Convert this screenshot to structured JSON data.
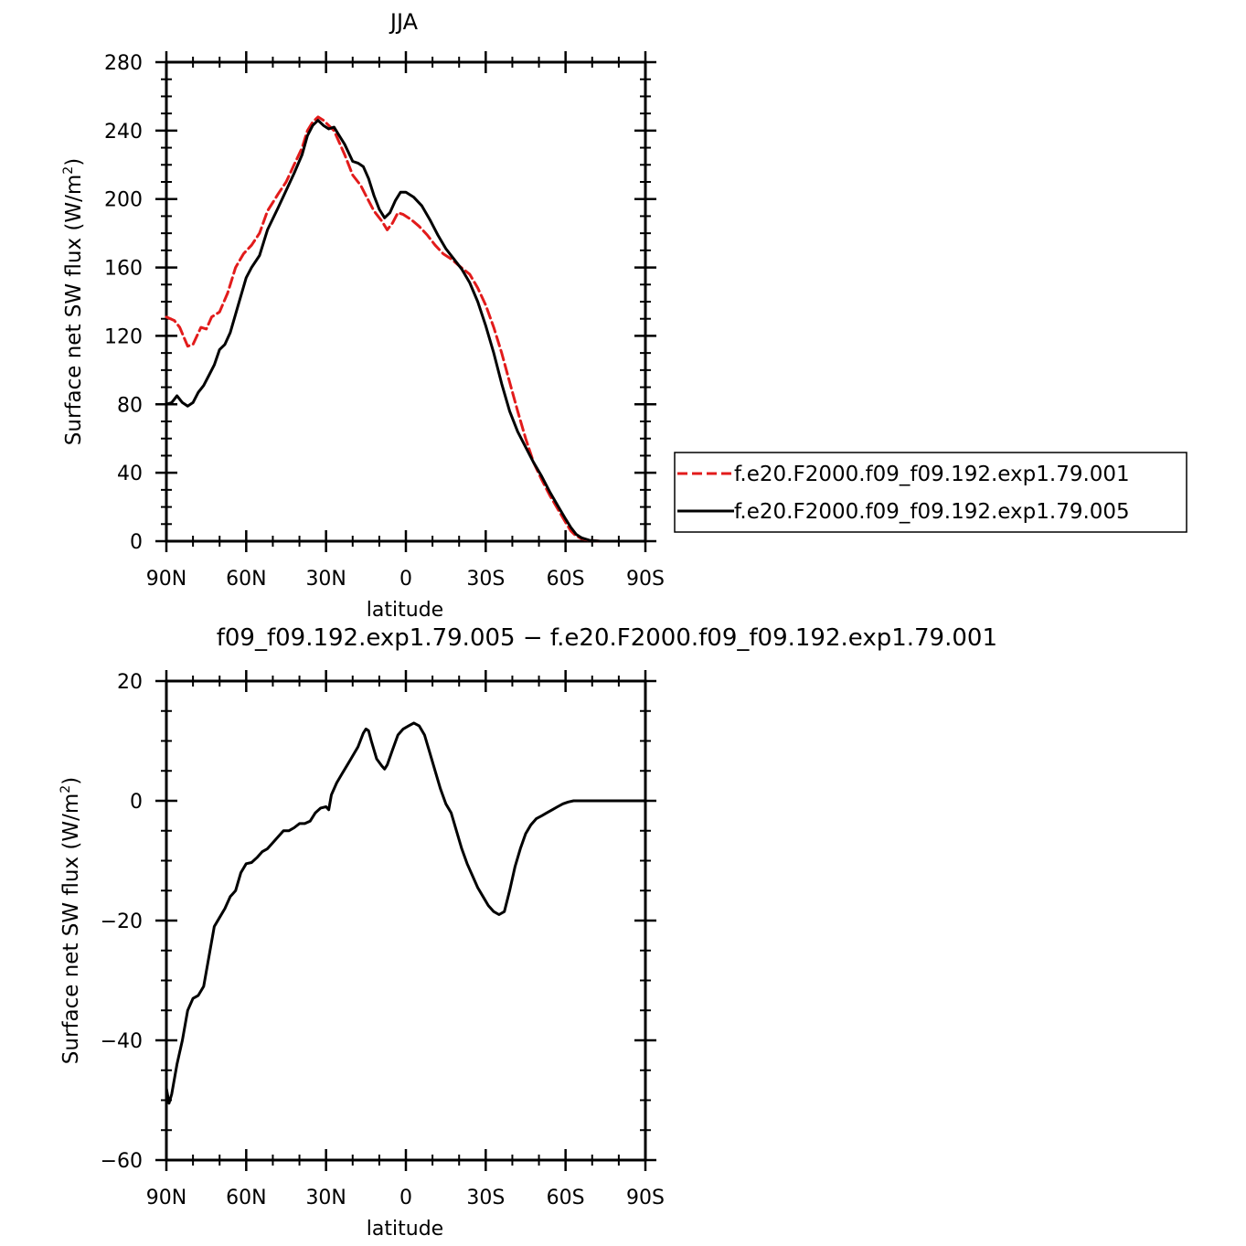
{
  "chart_data": [
    {
      "type": "line",
      "title": "JJA",
      "xlabel": "latitude",
      "ylabel": "Surface net SW flux (W/m²)",
      "ylabel_main": "Surface net SW flux (W/m",
      "ylabel_sup": "2",
      "ylabel_tail": ")",
      "xlim": [
        90,
        -90
      ],
      "ylim": [
        0,
        280
      ],
      "yticks": [
        0,
        40,
        80,
        120,
        160,
        200,
        240,
        280
      ],
      "xticks": [
        {
          "value": 90,
          "label": "90N"
        },
        {
          "value": 60,
          "label": "60N"
        },
        {
          "value": 30,
          "label": "30N"
        },
        {
          "value": 0,
          "label": "0"
        },
        {
          "value": -30,
          "label": "30S"
        },
        {
          "value": -60,
          "label": "60S"
        },
        {
          "value": -90,
          "label": "90S"
        }
      ],
      "legend_position": "right",
      "series": [
        {
          "name": "f.e20.F2000.f09_f09.192.exp1.79.001",
          "color": "#e21b1b",
          "dash": "dashed",
          "points": [
            [
              90,
              131
            ],
            [
              87,
              129
            ],
            [
              85,
              125
            ],
            [
              82,
              114
            ],
            [
              80,
              115
            ],
            [
              77,
              125
            ],
            [
              75,
              124
            ],
            [
              73,
              131
            ],
            [
              70,
              134
            ],
            [
              67,
              145
            ],
            [
              64,
              160
            ],
            [
              61,
              168
            ],
            [
              58,
              173
            ],
            [
              55,
              180
            ],
            [
              52,
              193
            ],
            [
              48,
              203
            ],
            [
              45,
              210
            ],
            [
              42,
              220
            ],
            [
              39,
              230
            ],
            [
              37,
              240
            ],
            [
              35,
              245
            ],
            [
              33,
              248
            ],
            [
              31,
              246
            ],
            [
              29,
              243
            ],
            [
              27,
              240
            ],
            [
              25,
              233
            ],
            [
              23,
              226
            ],
            [
              20,
              214
            ],
            [
              17,
              208
            ],
            [
              15,
              202
            ],
            [
              12,
              193
            ],
            [
              9,
              187
            ],
            [
              7,
              182
            ],
            [
              5,
              186
            ],
            [
              3,
              192
            ],
            [
              1,
              191
            ],
            [
              -2,
              188
            ],
            [
              -5,
              184
            ],
            [
              -8,
              179
            ],
            [
              -11,
              173
            ],
            [
              -14,
              168
            ],
            [
              -17,
              165
            ],
            [
              -20,
              161
            ],
            [
              -24,
              156
            ],
            [
              -27,
              148
            ],
            [
              -30,
              138
            ],
            [
              -33,
              125
            ],
            [
              -36,
              110
            ],
            [
              -39,
              93
            ],
            [
              -42,
              76
            ],
            [
              -45,
              60
            ],
            [
              -48,
              46
            ],
            [
              -51,
              36
            ],
            [
              -54,
              27
            ],
            [
              -57,
              19
            ],
            [
              -60,
              11
            ],
            [
              -62,
              6
            ],
            [
              -64,
              3
            ],
            [
              -66,
              1.5
            ],
            [
              -69,
              0.5
            ],
            [
              -73,
              0
            ],
            [
              -80,
              0
            ],
            [
              -90,
              0
            ]
          ]
        },
        {
          "name": "f.e20.F2000.f09_f09.192.exp1.79.005",
          "color": "#000000",
          "dash": "solid",
          "points": [
            [
              90,
              80
            ],
            [
              88,
              81
            ],
            [
              86,
              85
            ],
            [
              84,
              81
            ],
            [
              82,
              79
            ],
            [
              80,
              81
            ],
            [
              78,
              87
            ],
            [
              76,
              91
            ],
            [
              74,
              97
            ],
            [
              72,
              103
            ],
            [
              70,
              112
            ],
            [
              68,
              115
            ],
            [
              66,
              122
            ],
            [
              63,
              138
            ],
            [
              60,
              154
            ],
            [
              58,
              160
            ],
            [
              55,
              167
            ],
            [
              52,
              182
            ],
            [
              48,
              195
            ],
            [
              45,
              205
            ],
            [
              42,
              215
            ],
            [
              39,
              226
            ],
            [
              37,
              237
            ],
            [
              35,
              243
            ],
            [
              33,
              246
            ],
            [
              31,
              243
            ],
            [
              29,
              241
            ],
            [
              27,
              242
            ],
            [
              25,
              237
            ],
            [
              23,
              232
            ],
            [
              20,
              222
            ],
            [
              18,
              221
            ],
            [
              16,
              219
            ],
            [
              14,
              212
            ],
            [
              12,
              202
            ],
            [
              10,
              194
            ],
            [
              8,
              189
            ],
            [
              6,
              192
            ],
            [
              4,
              199
            ],
            [
              2,
              204
            ],
            [
              0,
              204
            ],
            [
              -3,
              201
            ],
            [
              -6,
              196
            ],
            [
              -9,
              188
            ],
            [
              -12,
              179
            ],
            [
              -15,
              171
            ],
            [
              -18,
              165
            ],
            [
              -21,
              159
            ],
            [
              -24,
              151
            ],
            [
              -27,
              140
            ],
            [
              -30,
              126
            ],
            [
              -33,
              110
            ],
            [
              -36,
              92
            ],
            [
              -39,
              76
            ],
            [
              -42,
              64
            ],
            [
              -45,
              55
            ],
            [
              -48,
              46
            ],
            [
              -51,
              38
            ],
            [
              -54,
              29
            ],
            [
              -57,
              21
            ],
            [
              -60,
              13
            ],
            [
              -62,
              8
            ],
            [
              -64,
              4
            ],
            [
              -66,
              2
            ],
            [
              -69,
              0.5
            ],
            [
              -73,
              0
            ],
            [
              -80,
              0
            ],
            [
              -90,
              0
            ]
          ]
        }
      ]
    },
    {
      "type": "line",
      "title": "f09_f09.192.exp1.79.005 − f.e20.F2000.f09_f09.192.exp1.79.001",
      "xlabel": "latitude",
      "ylabel": "Surface net SW flux (W/m²)",
      "ylabel_main": "Surface net SW flux (W/m",
      "ylabel_sup": "2",
      "ylabel_tail": ")",
      "xlim": [
        90,
        -90
      ],
      "ylim": [
        -60,
        20
      ],
      "yticks": [
        -60,
        -40,
        -20,
        0,
        20
      ],
      "ytick_labels": [
        "−60",
        "−40",
        "−20",
        "0",
        "20"
      ],
      "xticks": [
        {
          "value": 90,
          "label": "90N"
        },
        {
          "value": 60,
          "label": "60N"
        },
        {
          "value": 30,
          "label": "30N"
        },
        {
          "value": 0,
          "label": "0"
        },
        {
          "value": -30,
          "label": "30S"
        },
        {
          "value": -60,
          "label": "60S"
        },
        {
          "value": -90,
          "label": "90S"
        }
      ],
      "series": [
        {
          "color": "#000000",
          "dash": "solid",
          "points": [
            [
              90,
              -48
            ],
            [
              89,
              -50.5
            ],
            [
              88,
              -49
            ],
            [
              86,
              -44
            ],
            [
              84,
              -40
            ],
            [
              82,
              -35
            ],
            [
              80,
              -33
            ],
            [
              78,
              -32.5
            ],
            [
              76,
              -31
            ],
            [
              74,
              -26
            ],
            [
              72,
              -21
            ],
            [
              70,
              -19.5
            ],
            [
              68,
              -18
            ],
            [
              66,
              -16
            ],
            [
              64,
              -15
            ],
            [
              62,
              -12
            ],
            [
              60,
              -10.5
            ],
            [
              58,
              -10.3
            ],
            [
              56,
              -9.5
            ],
            [
              54,
              -8.5
            ],
            [
              52,
              -8
            ],
            [
              50,
              -7
            ],
            [
              48,
              -6
            ],
            [
              46,
              -5
            ],
            [
              44,
              -5
            ],
            [
              42,
              -4.5
            ],
            [
              40,
              -3.8
            ],
            [
              38,
              -3.8
            ],
            [
              36,
              -3.4
            ],
            [
              34,
              -2
            ],
            [
              32,
              -1.2
            ],
            [
              30,
              -1
            ],
            [
              29,
              -1.5
            ],
            [
              28,
              1
            ],
            [
              26,
              3
            ],
            [
              24,
              4.5
            ],
            [
              22,
              6
            ],
            [
              20,
              7.5
            ],
            [
              18,
              9
            ],
            [
              16,
              11.3
            ],
            [
              15,
              12
            ],
            [
              14,
              11.7
            ],
            [
              13,
              10
            ],
            [
              11,
              7
            ],
            [
              9,
              5.8
            ],
            [
              8,
              5.3
            ],
            [
              7,
              6
            ],
            [
              5,
              8.5
            ],
            [
              3,
              11
            ],
            [
              1,
              12
            ],
            [
              -1,
              12.5
            ],
            [
              -3,
              13
            ],
            [
              -5,
              12.5
            ],
            [
              -7,
              11
            ],
            [
              -9,
              8
            ],
            [
              -11,
              5
            ],
            [
              -13,
              2
            ],
            [
              -15,
              -0.5
            ],
            [
              -17,
              -2
            ],
            [
              -19,
              -5
            ],
            [
              -21,
              -8
            ],
            [
              -23,
              -10.5
            ],
            [
              -25,
              -12.5
            ],
            [
              -27,
              -14.5
            ],
            [
              -29,
              -16
            ],
            [
              -31,
              -17.5
            ],
            [
              -33,
              -18.5
            ],
            [
              -35,
              -19
            ],
            [
              -37,
              -18.5
            ],
            [
              -39,
              -15
            ],
            [
              -41,
              -11
            ],
            [
              -43,
              -8
            ],
            [
              -45,
              -5.5
            ],
            [
              -47,
              -4
            ],
            [
              -49,
              -3
            ],
            [
              -51,
              -2.5
            ],
            [
              -53,
              -2
            ],
            [
              -55,
              -1.5
            ],
            [
              -57,
              -1
            ],
            [
              -59,
              -0.5
            ],
            [
              -61,
              -0.2
            ],
            [
              -63,
              0
            ],
            [
              -70,
              0
            ],
            [
              -90,
              0
            ]
          ]
        }
      ]
    }
  ]
}
